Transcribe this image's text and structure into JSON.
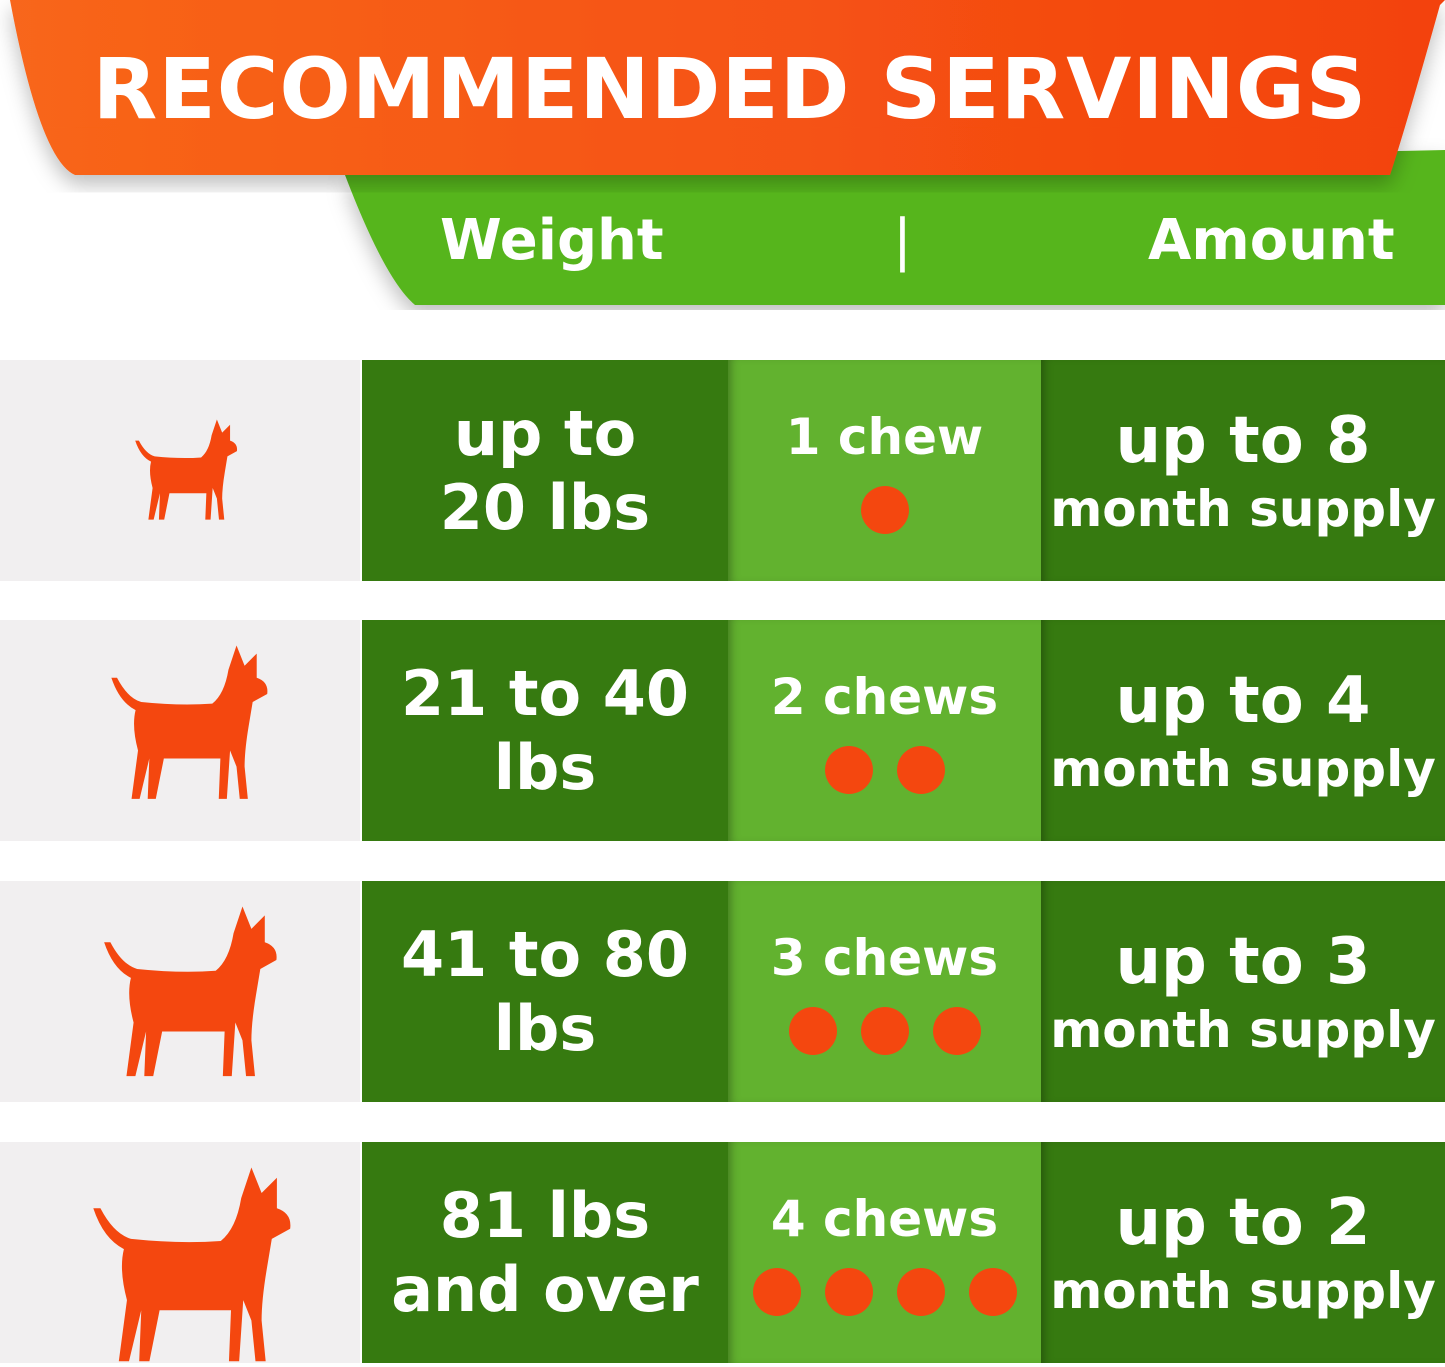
{
  "title": "RECOMMENDED SERVINGS",
  "header": {
    "weight": "Weight",
    "separator": "|",
    "amount": "Amount"
  },
  "colors": {
    "orange": "#f4470f",
    "header_green": "#56b51b",
    "dark_green": "#367a10",
    "light_green": "#62b22f"
  },
  "rows": [
    {
      "icon": "small-dog-icon",
      "weight": [
        "up to",
        "20 lbs"
      ],
      "chews": "1 chew",
      "chew_count": 1,
      "amount": "up to 8",
      "amount_unit": "month supply"
    },
    {
      "icon": "medium-dog-icon",
      "weight": [
        "21 to 40",
        "lbs"
      ],
      "chews": "2 chews",
      "chew_count": 2,
      "amount": "up to 4",
      "amount_unit": "month supply"
    },
    {
      "icon": "large-dog-icon",
      "weight": [
        "41 to 80",
        "lbs"
      ],
      "chews": "3 chews",
      "chew_count": 3,
      "amount": "up to 3",
      "amount_unit": "month supply"
    },
    {
      "icon": "extra-large-dog-icon",
      "weight": [
        "81 lbs",
        "and over"
      ],
      "chews": "4 chews",
      "chew_count": 4,
      "amount": "up to 2",
      "amount_unit": "month supply"
    }
  ]
}
